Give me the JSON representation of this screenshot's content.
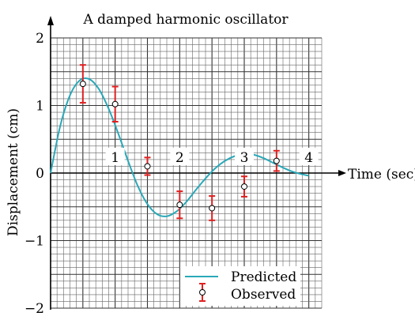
{
  "chart_data": {
    "type": "line",
    "title": "A damped harmonic oscillator",
    "xlabel": "Time (sec)",
    "ylabel": "Displacement (cm)",
    "xlim": [
      0,
      4.2
    ],
    "ylim": [
      -2,
      2
    ],
    "x_ticks": [
      1,
      2,
      3,
      4
    ],
    "x_tick_labels": [
      "1",
      "2",
      "3",
      "4"
    ],
    "y_ticks": [
      -2,
      -1,
      0,
      1,
      2
    ],
    "y_tick_labels": [
      "−2",
      "−1",
      "0",
      "1",
      "2"
    ],
    "grid": true,
    "legend_position": "bottom-right",
    "series": [
      {
        "name": "Predicted",
        "kind": "line",
        "color": "#2aa8b8",
        "x": [
          0,
          0.15,
          0.3,
          0.45,
          0.6,
          0.75,
          0.9,
          1.05,
          1.2,
          1.35,
          1.5,
          1.65,
          1.8,
          1.95,
          2.1,
          2.25,
          2.4,
          2.55,
          2.7,
          2.85,
          3.0,
          3.15,
          3.3,
          3.45,
          3.6,
          3.75,
          3.9,
          4.0
        ],
        "y": [
          0,
          0.7,
          1.15,
          1.37,
          1.39,
          1.24,
          0.95,
          0.58,
          0.18,
          -0.19,
          -0.46,
          -0.61,
          -0.64,
          -0.57,
          -0.43,
          -0.25,
          -0.08,
          0.07,
          0.18,
          0.25,
          0.28,
          0.27,
          0.22,
          0.15,
          0.08,
          0.02,
          -0.02,
          -0.04
        ]
      },
      {
        "name": "Observed",
        "kind": "errorbar",
        "color": "#e02020",
        "x": [
          0.5,
          1.0,
          1.5,
          2.0,
          2.5,
          3.0,
          3.5
        ],
        "y": [
          1.32,
          1.02,
          0.1,
          -0.47,
          -0.52,
          -0.2,
          0.18
        ],
        "err": [
          0.28,
          0.26,
          0.13,
          0.2,
          0.18,
          0.15,
          0.15
        ]
      }
    ]
  }
}
